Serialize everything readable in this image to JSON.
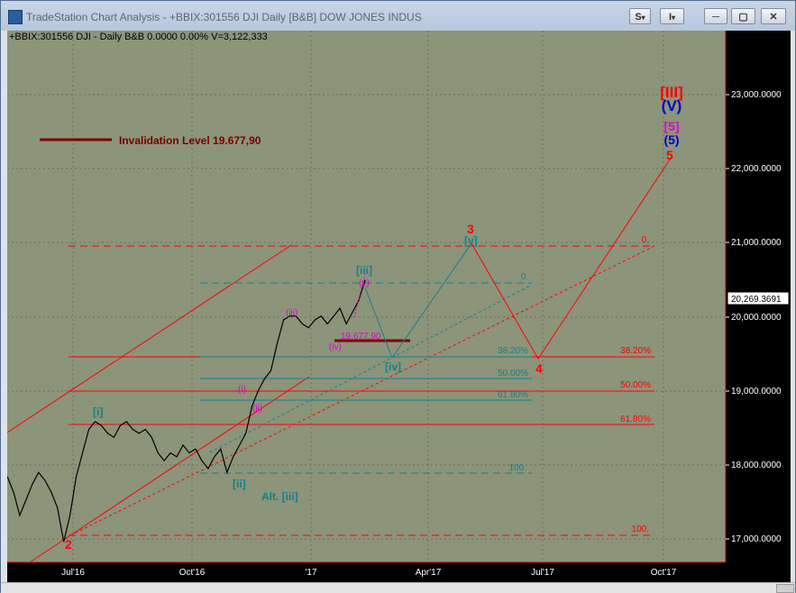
{
  "window": {
    "title": "TradeStation Chart Analysis - +BBIX:301556 DJI Daily [B&B] DOW JONES INDUS",
    "btn_s": "S",
    "btn_i": "I",
    "chevron": "▾",
    "min": "─",
    "max": "▢",
    "close": "✕"
  },
  "chart": {
    "header": "+BBIX:301556 DJI - Daily  B&B  0.0000  0.00%  V=3,122,333",
    "invalidation_label": "Invalidation Level 19.677,90",
    "last_price": "20,269.3691",
    "y_ticks": [
      "23,000.0000",
      "22,000.0000",
      "21,000.0000",
      "20,000.0000",
      "19,000.0000",
      "18,000.0000",
      "17,000.0000"
    ],
    "x_ticks": [
      "Jul'16",
      "Oct'16",
      "'17",
      "Apr'17",
      "Jul'17",
      "Oct'17"
    ],
    "fib_red": [
      "0.",
      "38.20%",
      "50.00%",
      "61.80%",
      "100."
    ],
    "fib_teal": [
      "0.",
      "38.20%",
      "50.00%",
      "61.80%",
      "100."
    ],
    "labels": {
      "wave3": "3",
      "wave4": "4",
      "wave5": "5",
      "wave2": "2",
      "v_teal_top": "[v]",
      "iii_teal": "[iii]",
      "iv_teal": "[iv]",
      "i_teal": "[i]",
      "ii_teal": "[ii]",
      "alt_iii": "Alt. [iii]",
      "iii_pink": "(iii)",
      "iv_pink": "(iv)",
      "v_pink": "(v)",
      "i_pink": "(i)",
      "ii_pink": "(ii)",
      "inv_small": "19.677,90",
      "stack_III": "[III]",
      "stack_V": "(V)",
      "stack_5b": "[5]",
      "stack_5p": "(5)",
      "stack_5": "5"
    }
  },
  "chart_data": {
    "type": "line",
    "ylim": [
      16800,
      23600
    ],
    "price_min": 17063,
    "price_max": 20412,
    "last": 20269.37,
    "series": [
      {
        "values": [
          17900,
          17700,
          17400,
          17600,
          17800,
          17950,
          17850,
          17700,
          17500,
          17063,
          17400,
          17900,
          18200,
          18500,
          18600,
          18550,
          18450,
          18400,
          18550,
          18600,
          18500,
          18450,
          18500,
          18400,
          18200,
          18100,
          18200,
          18150,
          18300,
          18200,
          18250,
          18100,
          18000,
          18150,
          18250,
          17950,
          18150,
          18300,
          18450,
          18800,
          19000,
          19150,
          19250,
          19600,
          19900,
          19950,
          19950,
          19850,
          19800,
          19900,
          19950,
          19850,
          19950,
          20050,
          19850,
          20000,
          20150,
          20412
        ]
      }
    ]
  },
  "colors": {
    "plot_bg": "#8c947a",
    "red": "#ff0000",
    "teal": "#14808a",
    "pink": "#e000d0",
    "darkred": "#7a0000",
    "blue": "#0000c8"
  }
}
